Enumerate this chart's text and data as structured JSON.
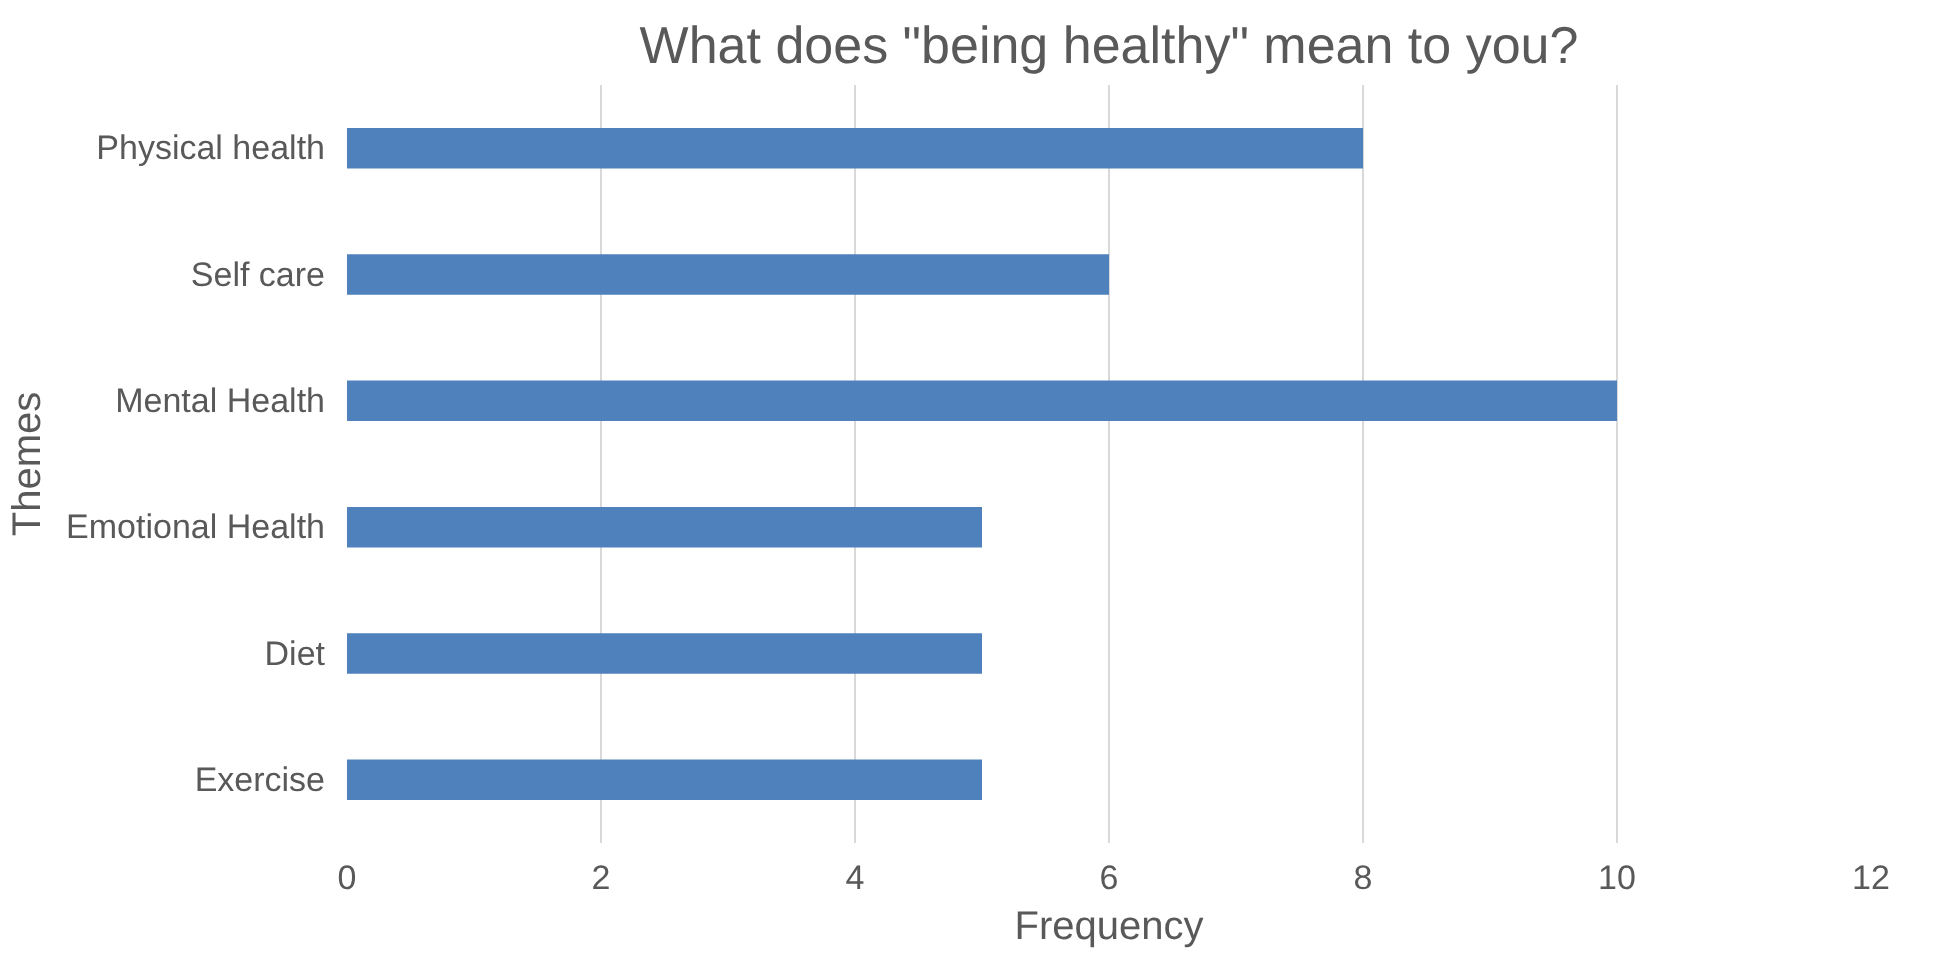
{
  "chart_data": {
    "type": "bar",
    "orientation": "horizontal",
    "title": "What does \"being healthy\" mean to you?",
    "xlabel": "Frequency",
    "ylabel": "Themes",
    "categories": [
      "Physical health",
      "Self care",
      "Mental Health",
      "Emotional Health",
      "Diet",
      "Exercise"
    ],
    "values": [
      8,
      6,
      10,
      5,
      5,
      5
    ],
    "color": "#4f81bd",
    "xlim": [
      0,
      12
    ],
    "xticks": [
      0,
      2,
      4,
      6,
      8,
      10,
      12
    ],
    "grid": "x"
  }
}
